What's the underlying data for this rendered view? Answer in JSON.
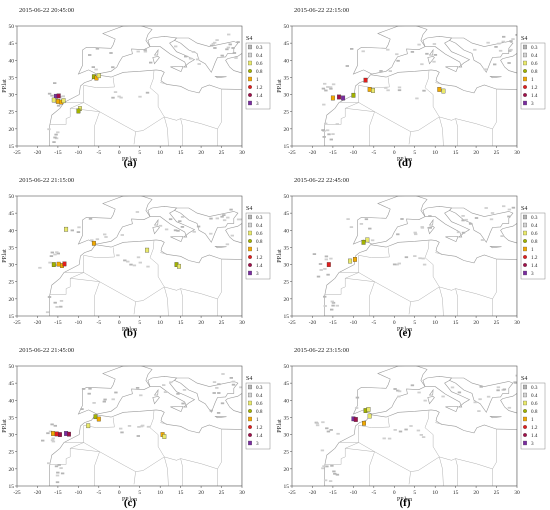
{
  "figure": {
    "legend_title": "S4",
    "x_axis_label": "PP.lon",
    "y_axis_label": "PP.lat",
    "x_ticks": [
      "-25",
      "-20",
      "-15",
      "-10",
      "-5",
      "0",
      "5",
      "10",
      "15",
      "20",
      "25",
      "30"
    ],
    "y_ticks": [
      "15",
      "20",
      "25",
      "30",
      "35",
      "40",
      "45",
      "50"
    ],
    "xlim": [
      -25,
      30
    ],
    "ylim": [
      15,
      50
    ],
    "legend": [
      {
        "label": "0.3",
        "color": "#b5b5b5",
        "shape": "square"
      },
      {
        "label": "0.4",
        "color": "#d3d3d3",
        "shape": "square"
      },
      {
        "label": "0.6",
        "color": "#e9e96a",
        "shape": "square"
      },
      {
        "label": "0.8",
        "color": "#a2b200",
        "shape": "dot"
      },
      {
        "label": "1",
        "color": "#f2a900",
        "shape": "square"
      },
      {
        "label": "1.2",
        "color": "#e01e1e",
        "shape": "dot"
      },
      {
        "label": "1.4",
        "color": "#a0104a",
        "shape": "dot"
      },
      {
        "label": "3",
        "color": "#7a2ca0",
        "shape": "square"
      }
    ]
  },
  "panels": [
    {
      "id": "a",
      "label": "(a)",
      "timestamp": "2015-06-22 20:45:00",
      "points": [
        {
          "lon": -15.5,
          "lat": 29.5,
          "s4": 3
        },
        {
          "lon": -14.8,
          "lat": 29.6,
          "s4": 1.4
        },
        {
          "lon": -15.0,
          "lat": 28.0,
          "s4": 1
        },
        {
          "lon": -14.2,
          "lat": 27.8,
          "s4": 1
        },
        {
          "lon": -13.6,
          "lat": 28.2,
          "s4": 0.6
        },
        {
          "lon": -16.0,
          "lat": 28.4,
          "s4": 0.6
        },
        {
          "lon": -9.6,
          "lat": 25.9,
          "s4": 0.6
        },
        {
          "lon": -10.0,
          "lat": 25.2,
          "s4": 0.8
        },
        {
          "lon": -6.2,
          "lat": 35.2,
          "s4": 0.8
        },
        {
          "lon": -5.6,
          "lat": 34.8,
          "s4": 1
        },
        {
          "lon": -5.0,
          "lat": 35.5,
          "s4": 0.6
        }
      ]
    },
    {
      "id": "b",
      "label": "(b)",
      "timestamp": "2015-06-22 21:15:00",
      "points": [
        {
          "lon": -14.8,
          "lat": 30.1,
          "s4": 1
        },
        {
          "lon": -14.0,
          "lat": 29.7,
          "s4": 1
        },
        {
          "lon": -13.4,
          "lat": 30.2,
          "s4": 1.2
        },
        {
          "lon": -16.0,
          "lat": 30.0,
          "s4": 0.8
        },
        {
          "lon": -13.0,
          "lat": 40.3,
          "s4": 0.6
        },
        {
          "lon": -6.2,
          "lat": 36.2,
          "s4": 1
        },
        {
          "lon": 6.8,
          "lat": 34.2,
          "s4": 0.6
        },
        {
          "lon": 14.0,
          "lat": 30.0,
          "s4": 0.8
        },
        {
          "lon": 14.6,
          "lat": 29.5,
          "s4": 0.6
        }
      ]
    },
    {
      "id": "c",
      "label": "(c)",
      "timestamp": "2015-06-22 21:45:00",
      "points": [
        {
          "lon": -15.3,
          "lat": 30.2,
          "s4": 1.2
        },
        {
          "lon": -14.5,
          "lat": 30.0,
          "s4": 1.4
        },
        {
          "lon": -13.0,
          "lat": 30.3,
          "s4": 3
        },
        {
          "lon": -12.3,
          "lat": 30.1,
          "s4": 1.4
        },
        {
          "lon": -16.2,
          "lat": 30.3,
          "s4": 1
        },
        {
          "lon": -5.8,
          "lat": 35.2,
          "s4": 0.8
        },
        {
          "lon": -5.0,
          "lat": 34.5,
          "s4": 1
        },
        {
          "lon": -7.6,
          "lat": 32.6,
          "s4": 0.6
        },
        {
          "lon": 10.6,
          "lat": 30.0,
          "s4": 1
        },
        {
          "lon": 11.0,
          "lat": 29.4,
          "s4": 0.6
        }
      ]
    },
    {
      "id": "d",
      "label": "(d)",
      "timestamp": "2015-06-22 22:15:00",
      "points": [
        {
          "lon": -7.0,
          "lat": 34.2,
          "s4": 1.2
        },
        {
          "lon": -15.0,
          "lat": 29.0,
          "s4": 1
        },
        {
          "lon": -13.5,
          "lat": 29.3,
          "s4": 1.4
        },
        {
          "lon": -12.5,
          "lat": 29.0,
          "s4": 3
        },
        {
          "lon": -10.0,
          "lat": 29.8,
          "s4": 0.8
        },
        {
          "lon": -6.0,
          "lat": 31.5,
          "s4": 1
        },
        {
          "lon": -5.2,
          "lat": 31.2,
          "s4": 0.6
        },
        {
          "lon": 11.0,
          "lat": 31.5,
          "s4": 1
        },
        {
          "lon": 12.0,
          "lat": 31.0,
          "s4": 0.6
        }
      ]
    },
    {
      "id": "e",
      "label": "(e)",
      "timestamp": "2015-06-22 22:45:00",
      "points": [
        {
          "lon": -16.0,
          "lat": 30.0,
          "s4": 1.2
        },
        {
          "lon": -9.6,
          "lat": 31.5,
          "s4": 1
        },
        {
          "lon": -7.5,
          "lat": 36.5,
          "s4": 0.8
        },
        {
          "lon": -6.6,
          "lat": 37.2,
          "s4": 0.6
        },
        {
          "lon": -10.8,
          "lat": 31.0,
          "s4": 0.6
        }
      ]
    },
    {
      "id": "f",
      "label": "(f)",
      "timestamp": "2015-06-22 23:15:00",
      "points": [
        {
          "lon": -10.0,
          "lat": 34.6,
          "s4": 3
        },
        {
          "lon": -9.4,
          "lat": 34.4,
          "s4": 1.4
        },
        {
          "lon": -7.0,
          "lat": 37.0,
          "s4": 0.8
        },
        {
          "lon": -6.3,
          "lat": 37.3,
          "s4": 0.6
        },
        {
          "lon": -6.0,
          "lat": 35.4,
          "s4": 0.6
        },
        {
          "lon": -7.4,
          "lat": 33.3,
          "s4": 1
        }
      ]
    }
  ]
}
